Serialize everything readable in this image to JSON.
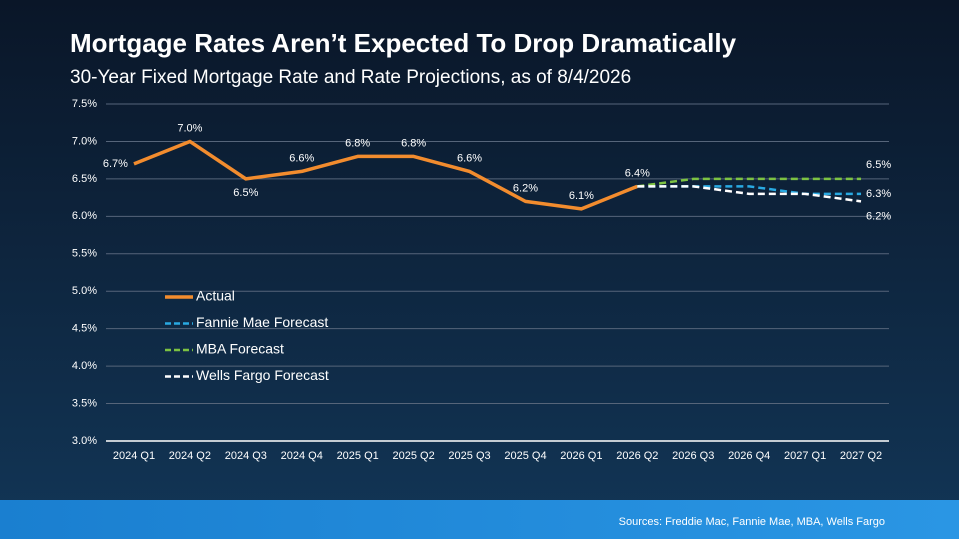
{
  "chart_data": {
    "type": "line",
    "title": "Mortgage Rates Aren’t Expected To Drop Dramatically",
    "subtitle": "30-Year Fixed Mortgage Rate and Rate Projections, as of 8/4/2026",
    "source": "Sources: Freddie Mac, Fannie Mae, MBA, Wells Fargo",
    "categories": [
      "2024 Q1",
      "2024 Q2",
      "2024 Q3",
      "2024 Q4",
      "2025 Q1",
      "2025 Q2",
      "2025 Q3",
      "2025 Q4",
      "2026 Q1",
      "2026 Q2",
      "2026 Q3",
      "2026 Q4",
      "2027 Q1",
      "2027 Q2"
    ],
    "series": [
      {
        "name": "Actual",
        "color": "#f28c2e",
        "dashed": false,
        "values": [
          6.7,
          7.0,
          6.5,
          6.6,
          6.8,
          6.8,
          6.6,
          6.2,
          6.1,
          6.4,
          null,
          null,
          null,
          null
        ],
        "value_labels": [
          "6.7%",
          "7.0%",
          "6.5%",
          "6.6%",
          "6.8%",
          "6.8%",
          "6.6%",
          "6.2%",
          "6.1%",
          "6.4%",
          null,
          null,
          null,
          null
        ]
      },
      {
        "name": "Fannie Mae Forecast",
        "color": "#29a9e1",
        "dashed": true,
        "values": [
          null,
          null,
          null,
          null,
          null,
          null,
          null,
          null,
          null,
          6.4,
          6.4,
          6.4,
          6.3,
          6.3
        ],
        "value_labels": [
          null,
          null,
          null,
          null,
          null,
          null,
          null,
          null,
          null,
          null,
          null,
          null,
          null,
          "6.3%"
        ]
      },
      {
        "name": "MBA Forecast",
        "color": "#7cc242",
        "dashed": true,
        "values": [
          null,
          null,
          null,
          null,
          null,
          null,
          null,
          null,
          null,
          6.4,
          6.5,
          6.5,
          6.5,
          6.5
        ],
        "value_labels": [
          null,
          null,
          null,
          null,
          null,
          null,
          null,
          null,
          null,
          null,
          null,
          null,
          null,
          "6.5%"
        ]
      },
      {
        "name": "Wells Fargo Forecast",
        "color": "#ffffff",
        "dashed": true,
        "values": [
          null,
          null,
          null,
          null,
          null,
          null,
          null,
          null,
          null,
          6.4,
          6.4,
          6.3,
          6.3,
          6.2
        ],
        "value_labels": [
          null,
          null,
          null,
          null,
          null,
          null,
          null,
          null,
          null,
          null,
          null,
          null,
          null,
          "6.2%"
        ]
      }
    ],
    "ylim": [
      3.0,
      7.5
    ],
    "yticks": [
      {
        "value": 3.0,
        "label": "3.0%"
      },
      {
        "value": 3.5,
        "label": "3.5%"
      },
      {
        "value": 4.0,
        "label": "4.0%"
      },
      {
        "value": 4.5,
        "label": "4.5%"
      },
      {
        "value": 5.0,
        "label": "5.0%"
      },
      {
        "value": 5.5,
        "label": "5.5%"
      },
      {
        "value": 6.0,
        "label": "6.0%"
      },
      {
        "value": 6.5,
        "label": "6.5%"
      },
      {
        "value": 7.0,
        "label": "7.0%"
      },
      {
        "value": 7.5,
        "label": "7.5%"
      }
    ],
    "grid": true
  }
}
